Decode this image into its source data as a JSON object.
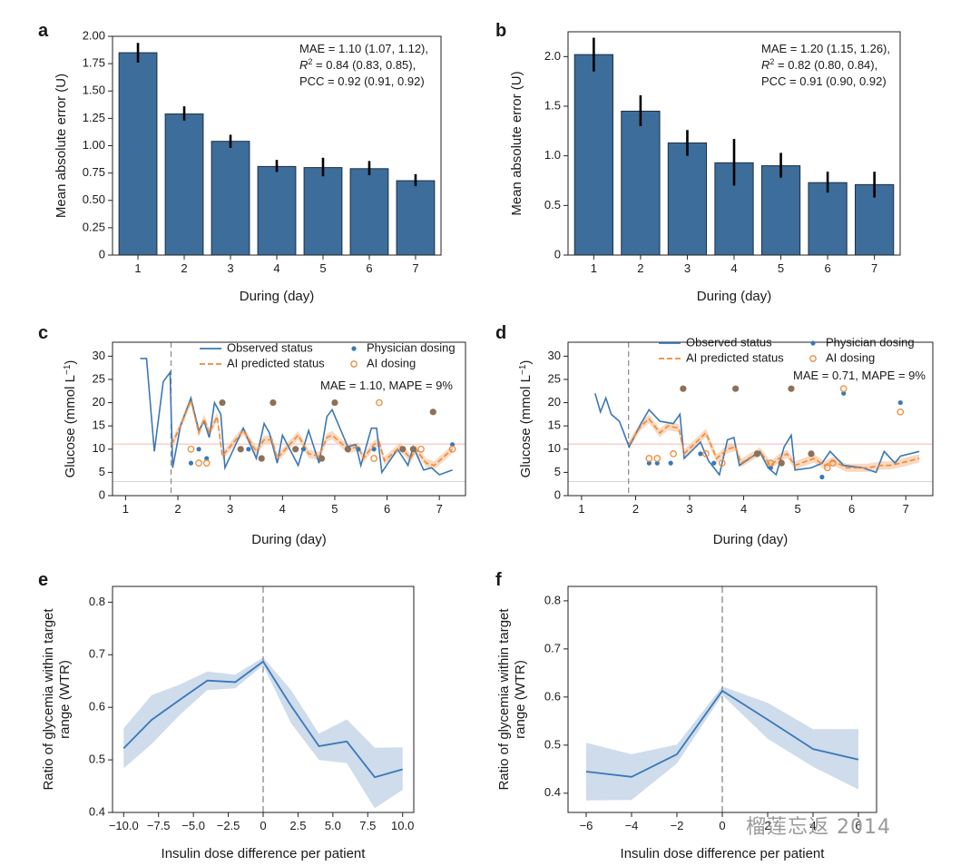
{
  "watermark": "榴莲忘返 2014",
  "chart_data": [
    {
      "panel": "a",
      "type": "bar",
      "categories": [
        "1",
        "2",
        "3",
        "4",
        "5",
        "6",
        "7"
      ],
      "values": [
        1.85,
        1.29,
        1.04,
        0.81,
        0.8,
        0.79,
        0.68
      ],
      "error_low": [
        1.76,
        1.23,
        0.98,
        0.76,
        0.72,
        0.73,
        0.63
      ],
      "error_high": [
        1.94,
        1.36,
        1.1,
        0.87,
        0.89,
        0.86,
        0.74
      ],
      "xlabel": "During (day)",
      "ylabel": "Mean absolute error (U)",
      "ylim": [
        0,
        2.0
      ],
      "yticks": [
        0,
        0.25,
        0.5,
        0.75,
        1.0,
        1.25,
        1.5,
        1.75,
        2.0
      ],
      "ytick_labels": [
        "0",
        "0.25",
        "0.50",
        "0.75",
        "1.00",
        "1.25",
        "1.50",
        "1.75",
        "2.00"
      ],
      "annotation": [
        "MAE = 1.10 (1.07, 1.12),",
        "R² = 0.84 (0.83, 0.85),",
        "PCC = 0.92 (0.91, 0.92)"
      ],
      "color": "#3d6d9a"
    },
    {
      "panel": "b",
      "type": "bar",
      "categories": [
        "1",
        "2",
        "3",
        "4",
        "5",
        "6",
        "7"
      ],
      "values": [
        2.02,
        1.45,
        1.13,
        0.93,
        0.9,
        0.73,
        0.71
      ],
      "error_low": [
        1.85,
        1.3,
        1.0,
        0.7,
        0.78,
        0.63,
        0.58
      ],
      "error_high": [
        2.19,
        1.61,
        1.26,
        1.17,
        1.03,
        0.84,
        0.84
      ],
      "xlabel": "During (day)",
      "ylabel": "Mean absolute error (U)",
      "ylim": [
        0,
        2.25
      ],
      "yticks": [
        0,
        0.5,
        1.0,
        1.5,
        2.0
      ],
      "ytick_labels": [
        "0",
        "0.5",
        "1.0",
        "1.5",
        "2.0"
      ],
      "annotation": [
        "MAE = 1.20 (1.15, 1.26),",
        "R² = 0.82 (0.80, 0.84),",
        "PCC = 0.91 (0.90, 0.92)"
      ],
      "color": "#3d6d9a"
    },
    {
      "panel": "c",
      "type": "line",
      "xlabel": "During (day)",
      "ylabel": "Glucose (mmol L⁻¹)",
      "xlim": [
        0.75,
        7.5
      ],
      "ylim": [
        0,
        33
      ],
      "xticks": [
        1,
        2,
        3,
        4,
        5,
        6,
        7
      ],
      "yticks": [
        0,
        5,
        10,
        15,
        20,
        25,
        30
      ],
      "legend": [
        "Observed status",
        "AI predicted status",
        "Physician dosing",
        "AI dosing"
      ],
      "annotation": "MAE = 1.10, MAPE = 9%",
      "vline_x": 1.87,
      "hlines": [
        11.1,
        3.0
      ],
      "observed": {
        "x": [
          1.28,
          1.4,
          1.55,
          1.72,
          1.85,
          1.9,
          2.05,
          2.25,
          2.4,
          2.5,
          2.6,
          2.7,
          2.82,
          2.9,
          3.25,
          3.5,
          3.65,
          3.75,
          3.9,
          4.0,
          4.3,
          4.5,
          4.7,
          4.85,
          4.95,
          5.25,
          5.4,
          5.5,
          5.7,
          5.8,
          5.9,
          6.2,
          6.4,
          6.5,
          6.7,
          6.85,
          7.0,
          7.25
        ],
        "y": [
          29.5,
          29.5,
          9.5,
          24.5,
          26.5,
          6.0,
          15.0,
          21.0,
          14.0,
          16.0,
          12.5,
          20.0,
          17.5,
          6.0,
          14.5,
          8.0,
          15.5,
          13.5,
          7.0,
          13.0,
          6.5,
          14.0,
          7.0,
          17.0,
          18.5,
          10.5,
          11.0,
          6.5,
          14.5,
          14.5,
          5.0,
          10.0,
          6.5,
          10.5,
          5.5,
          6.0,
          4.5,
          5.5
        ]
      },
      "predicted": {
        "x": [
          1.88,
          2.05,
          2.25,
          2.4,
          2.5,
          2.6,
          2.75,
          2.85,
          3.25,
          3.5,
          3.65,
          3.8,
          3.9,
          4.3,
          4.5,
          4.7,
          4.85,
          4.95,
          5.25,
          5.45,
          5.55,
          5.75,
          5.85,
          5.95,
          6.25,
          6.45,
          6.55,
          6.75,
          6.9,
          7.25
        ],
        "y": [
          11.0,
          15.0,
          20.5,
          13.5,
          16.5,
          13.5,
          17.0,
          8.5,
          14.0,
          9.5,
          12.0,
          12.0,
          8.0,
          13.0,
          9.0,
          8.5,
          12.5,
          13.0,
          10.0,
          10.5,
          8.0,
          11.0,
          11.5,
          7.5,
          10.5,
          8.0,
          10.0,
          7.0,
          6.5,
          10.0
        ]
      },
      "physician_dosing": {
        "x": [
          2.25,
          2.4,
          2.55,
          2.85,
          3.2,
          3.35,
          3.6,
          3.82,
          4.25,
          4.4,
          4.75,
          5.0,
          5.25,
          5.45,
          5.75,
          6.3,
          6.5,
          6.88,
          7.25
        ],
        "y": [
          7,
          10,
          8,
          20,
          10,
          10,
          8,
          20,
          10,
          10,
          8,
          20,
          10,
          10,
          10,
          10,
          10,
          18,
          11
        ]
      },
      "ai_dosing": {
        "x": [
          2.25,
          2.4,
          2.55,
          2.85,
          3.25,
          3.6,
          3.85,
          4.25,
          4.75,
          5.0,
          5.25,
          5.75,
          5.85,
          6.25,
          6.45,
          6.65,
          6.9,
          7.25
        ],
        "y": [
          10,
          7,
          7,
          20,
          10,
          8,
          20,
          10,
          8,
          20,
          10,
          8,
          20,
          10,
          10,
          10,
          18,
          10
        ]
      }
    },
    {
      "panel": "d",
      "type": "line",
      "xlabel": "During (day)",
      "ylabel": "Glucose (mmol L⁻¹)",
      "xlim": [
        0.75,
        7.5
      ],
      "ylim": [
        0,
        33
      ],
      "xticks": [
        1,
        2,
        3,
        4,
        5,
        6,
        7
      ],
      "yticks": [
        0,
        5,
        10,
        15,
        20,
        25,
        30
      ],
      "legend": [
        "Observed status",
        "AI predicted status",
        "Physician dosing",
        "AI dosing"
      ],
      "annotation": "MAE = 0.71, MAPE = 9%",
      "vline_x": 1.87,
      "hlines": [
        11.1,
        3.0
      ],
      "observed": {
        "x": [
          1.25,
          1.35,
          1.45,
          1.55,
          1.7,
          1.88,
          2.1,
          2.25,
          2.45,
          2.7,
          2.82,
          2.9,
          3.2,
          3.35,
          3.55,
          3.7,
          3.82,
          3.92,
          4.3,
          4.45,
          4.6,
          4.75,
          4.88,
          4.95,
          5.25,
          5.45,
          5.6,
          5.85,
          6.2,
          6.45,
          6.6,
          6.8,
          6.9,
          7.25
        ],
        "y": [
          22.0,
          18.0,
          21.0,
          17.5,
          16.0,
          10.5,
          15.5,
          18.5,
          16.0,
          15.5,
          17.5,
          8.0,
          11.5,
          7.5,
          4.5,
          12.0,
          12.5,
          6.5,
          9.5,
          6.0,
          4.5,
          10.5,
          13.0,
          5.5,
          6.0,
          7.0,
          9.5,
          6.5,
          6.0,
          5.0,
          9.5,
          7.0,
          8.5,
          9.5
        ]
      },
      "predicted": {
        "x": [
          1.88,
          2.1,
          2.25,
          2.45,
          2.6,
          2.8,
          2.9,
          3.3,
          3.5,
          3.7,
          3.85,
          3.95,
          4.3,
          4.5,
          4.65,
          4.8,
          4.95,
          5.3,
          5.5,
          5.65,
          5.9,
          6.3,
          6.55,
          6.7,
          6.9,
          7.25
        ],
        "y": [
          11.0,
          15.0,
          16.5,
          13.5,
          15.0,
          14.5,
          9.0,
          13.5,
          8.0,
          10.0,
          10.5,
          7.0,
          9.5,
          6.5,
          8.0,
          9.0,
          6.5,
          8.0,
          6.5,
          7.5,
          6.0,
          6.0,
          6.5,
          6.5,
          7.0,
          8.0
        ]
      },
      "physician_dosing": {
        "x": [
          2.25,
          2.4,
          2.65,
          2.88,
          3.2,
          3.45,
          3.85,
          4.25,
          4.5,
          4.7,
          4.88,
          5.25,
          5.45,
          5.85,
          6.9
        ],
        "y": [
          7,
          7,
          7,
          23,
          9,
          7,
          23,
          9,
          6,
          7,
          23,
          9,
          4,
          22,
          20
        ]
      },
      "ai_dosing": {
        "x": [
          2.25,
          2.4,
          2.7,
          2.88,
          3.3,
          3.6,
          3.85,
          4.25,
          4.5,
          4.75,
          4.88,
          5.25,
          5.55,
          5.65,
          5.85,
          6.9
        ],
        "y": [
          8,
          8,
          9,
          23,
          9,
          7,
          23,
          9,
          7,
          7,
          23,
          9,
          6,
          7,
          23,
          18
        ]
      }
    },
    {
      "panel": "e",
      "type": "line",
      "xlabel": "Insulin dose difference per patient",
      "ylabel": "Ratio of glycemia within target range (WTR)",
      "xlim": [
        -10.8,
        10.8
      ],
      "ylim": [
        0.4,
        0.83
      ],
      "xticks": [
        -10.0,
        -7.5,
        -5.0,
        -2.5,
        0,
        2.5,
        5.0,
        7.5,
        10.0
      ],
      "xtick_labels": [
        "−10.0",
        "−7.5",
        "−5.0",
        "−2.5",
        "0",
        "2.5",
        "5.0",
        "7.5",
        "10.0"
      ],
      "yticks": [
        0.4,
        0.5,
        0.6,
        0.7,
        0.8
      ],
      "ytick_labels": [
        "0.4",
        "0.5",
        "0.6",
        "0.7",
        "0.8"
      ],
      "vline_x": 0,
      "x": [
        -10,
        -8,
        -6,
        -4,
        -2,
        0,
        2,
        4,
        6,
        8,
        10
      ],
      "y": [
        0.522,
        0.576,
        0.614,
        0.651,
        0.648,
        0.687,
        0.603,
        0.526,
        0.535,
        0.467,
        0.482
      ],
      "ci_low": [
        0.484,
        0.53,
        0.585,
        0.633,
        0.636,
        0.68,
        0.57,
        0.5,
        0.494,
        0.408,
        0.443
      ],
      "ci_high": [
        0.56,
        0.623,
        0.643,
        0.668,
        0.662,
        0.695,
        0.633,
        0.55,
        0.577,
        0.523,
        0.524
      ]
    },
    {
      "panel": "f",
      "type": "line",
      "xlabel": "Insulin dose difference per patient",
      "ylabel": "Ratio of glycemia within target range (WTR)",
      "xlim": [
        -6.8,
        6.8
      ],
      "ylim": [
        0.36,
        0.83
      ],
      "xticks": [
        -6,
        -4,
        -2,
        0,
        2,
        4,
        6
      ],
      "xtick_labels": [
        "−6",
        "−4",
        "−2",
        "0",
        "2",
        "4",
        "6"
      ],
      "yticks": [
        0.4,
        0.5,
        0.6,
        0.7,
        0.8
      ],
      "ytick_labels": [
        "0.4",
        "0.5",
        "0.6",
        "0.7",
        "0.8"
      ],
      "vline_x": 0,
      "x": [
        -6,
        -4,
        -2,
        0,
        2,
        4,
        6
      ],
      "y": [
        0.445,
        0.434,
        0.481,
        0.613,
        0.553,
        0.492,
        0.47
      ],
      "ci_low": [
        0.385,
        0.386,
        0.462,
        0.604,
        0.513,
        0.455,
        0.408
      ],
      "ci_high": [
        0.505,
        0.481,
        0.501,
        0.622,
        0.588,
        0.533,
        0.533
      ]
    }
  ]
}
